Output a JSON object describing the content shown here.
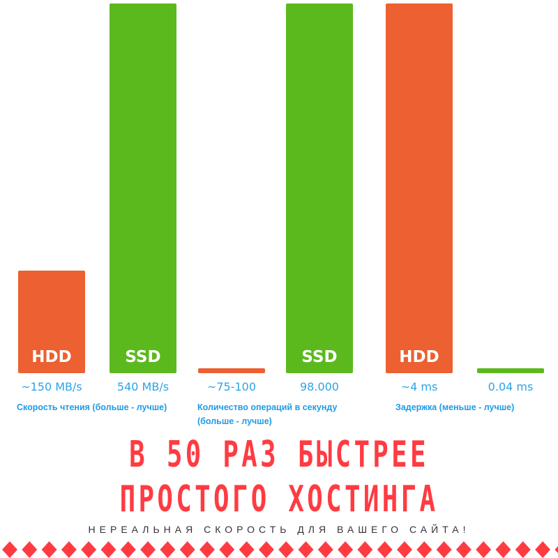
{
  "chart_data": {
    "type": "bar",
    "groups": [
      {
        "label": "Скорость чтения (больше - лучше)",
        "bars": [
          {
            "name": "HDD",
            "value_text": "~150 MB/s",
            "value": 150,
            "color": "#ec6031"
          },
          {
            "name": "SSD",
            "value_text": "540 MB/s",
            "value": 540,
            "color": "#5cb91d"
          }
        ]
      },
      {
        "label": "Количество операций в секунду (больше - лучше)",
        "bars": [
          {
            "name": "",
            "value_text": "~75-100",
            "value": 100,
            "color": "#ec6031"
          },
          {
            "name": "SSD",
            "value_text": "98.000",
            "value": 98000,
            "color": "#5cb91d"
          }
        ]
      },
      {
        "label": "Задержка (меньше - лучше)",
        "bars": [
          {
            "name": "HDD",
            "value_text": "~4 ms",
            "value": 4,
            "color": "#ec6031"
          },
          {
            "name": "",
            "value_text": "0.04 ms",
            "value": 0.04,
            "color": "#5cb91d"
          }
        ]
      }
    ]
  },
  "headline": {
    "line1": "В 50 РАЗ БЫСТРЕЕ",
    "line2": "ПРОСТОГО ХОСТИНГА"
  },
  "subtitle": "НЕРЕАЛЬНАЯ СКОРОСТЬ ДЛЯ ВАШЕГО САЙТА!",
  "colors": {
    "headline": "#ff3b42",
    "labels": "#1e9be6",
    "hdd": "#ec6031",
    "ssd": "#5cb91d"
  }
}
